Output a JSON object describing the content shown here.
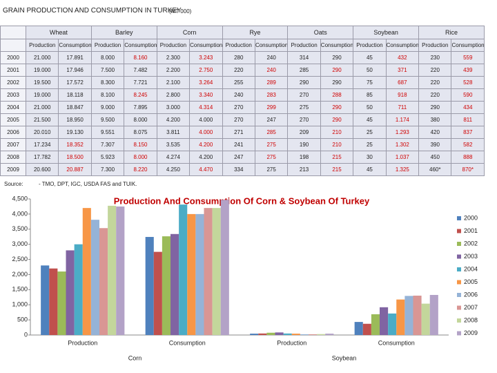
{
  "table": {
    "title": "GRAIN PRODUCTION AND CONSUMPTION IN TURKEY",
    "unit": "(MT 000)",
    "groups": [
      "Wheat",
      "Barley",
      "Corn",
      "Rye",
      "Oats",
      "Soybean",
      "Rice"
    ],
    "subheaders": [
      "Production",
      "Consumption",
      "Production",
      "Consumption",
      "Production",
      "Consumption",
      "Production",
      "Consumption",
      "Production",
      "Consumption",
      "Production",
      "Consumption",
      "Production",
      "Consumption"
    ],
    "rows": [
      {
        "year": "2000",
        "cells": [
          "21.000",
          "17.891",
          "8.000",
          "8.160",
          "2.300",
          "3.243",
          "280",
          "240",
          "314",
          "290",
          "45",
          "432",
          "230",
          "559"
        ]
      },
      {
        "year": "2001",
        "cells": [
          "19.000",
          "17.946",
          "7.500",
          "7.482",
          "2.200",
          "2.750",
          "220",
          "240",
          "285",
          "290",
          "50",
          "371",
          "220",
          "439"
        ]
      },
      {
        "year": "2002",
        "cells": [
          "19.500",
          "17.572",
          "8.300",
          "7.721",
          "2.100",
          "3.264",
          "255",
          "289",
          "290",
          "290",
          "75",
          "687",
          "220",
          "528"
        ]
      },
      {
        "year": "2003",
        "cells": [
          "19.000",
          "18.118",
          "8.100",
          "8.245",
          "2.800",
          "3.340",
          "240",
          "283",
          "270",
          "288",
          "85",
          "918",
          "220",
          "590"
        ]
      },
      {
        "year": "2004",
        "cells": [
          "21.000",
          "18.847",
          "9.000",
          "7.895",
          "3.000",
          "4.314",
          "270",
          "299",
          "275",
          "290",
          "50",
          "711",
          "290",
          "434"
        ]
      },
      {
        "year": "2005",
        "cells": [
          "21.500",
          "18.950",
          "9.500",
          "8.000",
          "4.200",
          "4.000",
          "270",
          "247",
          "270",
          "290",
          "45",
          "1.174",
          "380",
          "811"
        ]
      },
      {
        "year": "2006",
        "cells": [
          "20.010",
          "19.130",
          "9.551",
          "8.075",
          "3.811",
          "4.000",
          "271",
          "285",
          "209",
          "210",
          "25",
          "1.293",
          "420",
          "837"
        ]
      },
      {
        "year": "2007",
        "cells": [
          "17.234",
          "18.352",
          "7.307",
          "8.150",
          "3.535",
          "4.200",
          "241",
          "275",
          "190",
          "210",
          "25",
          "1.302",
          "390",
          "582"
        ]
      },
      {
        "year": "2008",
        "cells": [
          "17.782",
          "18.500",
          "5.923",
          "8.000",
          "4.274",
          "4.200",
          "247",
          "275",
          "198",
          "215",
          "30",
          "1.037",
          "450",
          "888"
        ]
      },
      {
        "year": "2009",
        "cells": [
          "20.600",
          "20.887",
          "7.300",
          "8.220",
          "4.250",
          "4.470",
          "334",
          "275",
          "213",
          "215",
          "45",
          "1.325",
          "460*",
          "870*"
        ]
      }
    ],
    "source_label": "Source:",
    "source": "- TMO, DPT, IGC, USDA FAS and TUIK."
  },
  "chart_data": {
    "type": "bar",
    "title": "Production And Consumption Of Corn & Soybean Of Turkey",
    "categories": [
      "Production",
      "Consumption",
      "Production",
      "Consumption"
    ],
    "category_groups": [
      "Corn",
      "Soybean"
    ],
    "series": [
      {
        "name": "2000",
        "color": "#4f81bd",
        "values": [
          2300,
          3243,
          45,
          432
        ]
      },
      {
        "name": "2001",
        "color": "#c0504d",
        "values": [
          2200,
          2750,
          50,
          371
        ]
      },
      {
        "name": "2002",
        "color": "#9bbb59",
        "values": [
          2100,
          3264,
          75,
          687
        ]
      },
      {
        "name": "2003",
        "color": "#8064a2",
        "values": [
          2800,
          3340,
          85,
          918
        ]
      },
      {
        "name": "2004",
        "color": "#4bacc6",
        "values": [
          3000,
          4314,
          50,
          711
        ]
      },
      {
        "name": "2005",
        "color": "#f79646",
        "values": [
          4200,
          4000,
          45,
          1174
        ]
      },
      {
        "name": "2006",
        "color": "#95b3d7",
        "values": [
          3811,
          4000,
          25,
          1293
        ]
      },
      {
        "name": "2007",
        "color": "#d99694",
        "values": [
          3535,
          4200,
          25,
          1302
        ]
      },
      {
        "name": "2008",
        "color": "#c3d69b",
        "values": [
          4274,
          4200,
          30,
          1037
        ]
      },
      {
        "name": "2009",
        "color": "#b3a2c7",
        "values": [
          4250,
          4470,
          45,
          1325
        ]
      }
    ],
    "ylim": [
      0,
      4500
    ],
    "yticks": [
      0,
      500,
      {
        "value": 1000,
        "label": "1,000"
      },
      {
        "value": 1500,
        "label": "1,500"
      },
      {
        "value": 2000,
        "label": "2,000"
      },
      {
        "value": 2500,
        "label": "2,500"
      },
      {
        "value": 3000,
        "label": "3,000"
      },
      {
        "value": 3500,
        "label": "3,500"
      },
      {
        "value": 4000,
        "label": "4,000"
      },
      {
        "value": 4500,
        "label": "4,500"
      }
    ],
    "legend": "right",
    "grid": false
  }
}
